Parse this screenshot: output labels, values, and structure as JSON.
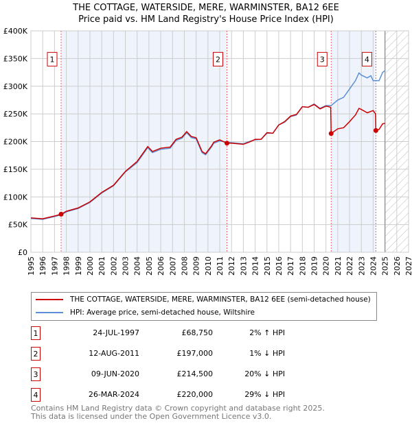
{
  "title": "THE COTTAGE, WATERSIDE, MERE, WARMINSTER, BA12 6EE",
  "subtitle": "Price paid vs. HM Land Registry's House Price Index (HPI)",
  "chart_data": {
    "type": "line",
    "xlim": [
      1995,
      2027
    ],
    "ylim": [
      0,
      400000
    ],
    "yticks": [
      0,
      50000,
      100000,
      150000,
      200000,
      250000,
      300000,
      350000,
      400000
    ],
    "ytick_labels": [
      "£0",
      "£50K",
      "£100K",
      "£150K",
      "£200K",
      "£250K",
      "£300K",
      "£350K",
      "£400K"
    ],
    "xticks": [
      1995,
      1996,
      1997,
      1998,
      1999,
      2000,
      2001,
      2002,
      2003,
      2004,
      2005,
      2006,
      2007,
      2008,
      2009,
      2010,
      2011,
      2012,
      2013,
      2014,
      2015,
      2016,
      2017,
      2018,
      2019,
      2020,
      2021,
      2022,
      2023,
      2024,
      2025,
      2026,
      2027
    ],
    "forecast_from": 2025,
    "series": [
      {
        "name": "THE COTTAGE, WATERSIDE, MERE, WARMINSTER, BA12 6EE (semi-detached house)",
        "color": "#cc0000",
        "points": [
          [
            1995,
            62000
          ],
          [
            1996,
            60500
          ],
          [
            1997,
            65500
          ],
          [
            1997.56,
            68750
          ],
          [
            1998,
            74000
          ],
          [
            1999,
            80000
          ],
          [
            2000,
            91000
          ],
          [
            2001,
            108000
          ],
          [
            2002,
            121000
          ],
          [
            2003,
            146000
          ],
          [
            2004,
            164000
          ],
          [
            2004.9,
            191000
          ],
          [
            2005.3,
            182000
          ],
          [
            2006,
            188000
          ],
          [
            2006.8,
            190000
          ],
          [
            2007.3,
            204000
          ],
          [
            2007.8,
            208000
          ],
          [
            2008.2,
            218000
          ],
          [
            2008.6,
            209000
          ],
          [
            2009,
            207000
          ],
          [
            2009.5,
            182000
          ],
          [
            2009.8,
            178000
          ],
          [
            2010.3,
            192000
          ],
          [
            2010.5,
            199000
          ],
          [
            2011,
            203000
          ],
          [
            2011.61,
            197000
          ],
          [
            2012,
            197000
          ],
          [
            2013,
            195000
          ],
          [
            2013.5,
            199000
          ],
          [
            2014,
            204000
          ],
          [
            2014.5,
            204000
          ],
          [
            2015,
            216000
          ],
          [
            2015.5,
            215000
          ],
          [
            2016,
            230000
          ],
          [
            2016.5,
            236000
          ],
          [
            2017,
            246000
          ],
          [
            2017.5,
            249000
          ],
          [
            2018,
            263000
          ],
          [
            2018.5,
            262000
          ],
          [
            2019,
            267000
          ],
          [
            2019.5,
            259000
          ],
          [
            2020,
            264000
          ],
          [
            2020.4,
            262000
          ],
          [
            2020.44,
            214500
          ],
          [
            2021,
            223000
          ],
          [
            2021.5,
            225000
          ],
          [
            2022,
            236000
          ],
          [
            2022.5,
            248000
          ],
          [
            2022.8,
            260000
          ],
          [
            2023,
            258000
          ],
          [
            2023.5,
            252000
          ],
          [
            2024,
            256000
          ],
          [
            2024.2,
            250000
          ],
          [
            2024.23,
            220000
          ],
          [
            2024.5,
            222000
          ],
          [
            2024.8,
            232000
          ],
          [
            2025,
            233000
          ]
        ]
      },
      {
        "name": "HPI: Average price, semi-detached house, Wiltshire",
        "color": "#5b8fd4",
        "points": [
          [
            1995,
            61000
          ],
          [
            1996,
            59500
          ],
          [
            1997,
            64500
          ],
          [
            1997.56,
            67500
          ],
          [
            1998,
            73000
          ],
          [
            1999,
            79000
          ],
          [
            2000,
            90000
          ],
          [
            2001,
            107000
          ],
          [
            2002,
            120000
          ],
          [
            2003,
            145000
          ],
          [
            2004,
            162000
          ],
          [
            2004.9,
            189000
          ],
          [
            2005.3,
            180000
          ],
          [
            2006,
            186000
          ],
          [
            2006.8,
            188000
          ],
          [
            2007.3,
            202000
          ],
          [
            2007.8,
            206000
          ],
          [
            2008.2,
            216000
          ],
          [
            2008.6,
            207000
          ],
          [
            2009,
            205000
          ],
          [
            2009.5,
            180000
          ],
          [
            2009.8,
            176000
          ],
          [
            2010.3,
            190000
          ],
          [
            2010.5,
            197000
          ],
          [
            2011,
            201000
          ],
          [
            2011.61,
            199000
          ],
          [
            2012,
            198000
          ],
          [
            2013,
            196000
          ],
          [
            2013.5,
            200000
          ],
          [
            2014,
            203000
          ],
          [
            2014.5,
            204000
          ],
          [
            2015,
            215000
          ],
          [
            2015.5,
            215000
          ],
          [
            2016,
            230000
          ],
          [
            2016.5,
            235000
          ],
          [
            2017,
            245000
          ],
          [
            2017.5,
            248000
          ],
          [
            2018,
            263000
          ],
          [
            2018.5,
            262000
          ],
          [
            2019,
            268000
          ],
          [
            2019.5,
            260000
          ],
          [
            2020,
            265000
          ],
          [
            2020.44,
            265000
          ],
          [
            2021,
            275000
          ],
          [
            2021.5,
            280000
          ],
          [
            2022,
            295000
          ],
          [
            2022.5,
            310000
          ],
          [
            2022.8,
            324000
          ],
          [
            2023,
            320000
          ],
          [
            2023.5,
            315000
          ],
          [
            2023.8,
            319000
          ],
          [
            2024,
            310000
          ],
          [
            2024.5,
            310000
          ],
          [
            2024.8,
            325000
          ],
          [
            2025,
            328000
          ]
        ]
      }
    ],
    "sales": [
      {
        "n": "1",
        "x": 1997.56,
        "price": 68750,
        "date": "24-JUL-1997",
        "price_label": "£68,750",
        "hpi": "2% ↑ HPI"
      },
      {
        "n": "2",
        "x": 2011.61,
        "price": 197000,
        "date": "12-AUG-2011",
        "price_label": "£197,000",
        "hpi": "1% ↓ HPI"
      },
      {
        "n": "3",
        "x": 2020.44,
        "price": 214500,
        "date": "09-JUN-2020",
        "price_label": "£214,500",
        "hpi": "20% ↓ HPI"
      },
      {
        "n": "4",
        "x": 2024.23,
        "price": 220000,
        "date": "26-MAR-2024",
        "price_label": "£220,000",
        "hpi": "29% ↓ HPI"
      }
    ]
  },
  "footer": [
    "Contains HM Land Registry data © Crown copyright and database right 2025.",
    "This data is licensed under the Open Government Licence v3.0."
  ]
}
